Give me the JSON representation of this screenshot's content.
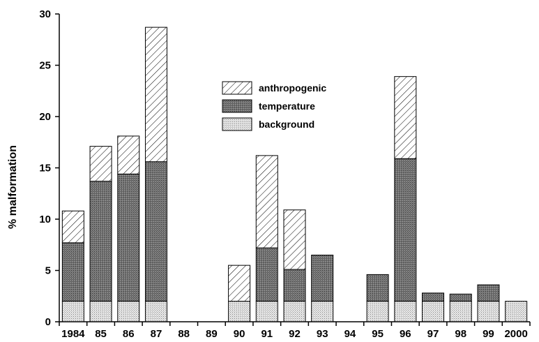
{
  "chart_data": {
    "type": "bar",
    "stacked": true,
    "ylabel": "% malformation",
    "xlabel": "",
    "ylim": [
      0,
      30
    ],
    "yticks": [
      0,
      5,
      10,
      15,
      20,
      25,
      30
    ],
    "grid": false,
    "legend_position": "top-center",
    "categories": [
      "1984",
      "85",
      "86",
      "87",
      "88",
      "89",
      "90",
      "91",
      "92",
      "93",
      "94",
      "95",
      "96",
      "97",
      "98",
      "99",
      "2000"
    ],
    "series": [
      {
        "name": "background",
        "pattern": "dotted",
        "color": "#d9d9d9",
        "values": [
          2,
          2,
          2,
          2,
          0,
          0,
          2,
          2,
          2,
          2,
          0,
          2,
          2,
          2,
          2,
          2,
          2
        ]
      },
      {
        "name": "temperature",
        "pattern": "dark-stipple",
        "color": "#6e6e6e",
        "values": [
          5.7,
          11.7,
          12.4,
          13.6,
          0,
          0,
          0,
          5.2,
          3.1,
          4.5,
          0,
          2.6,
          13.9,
          0.8,
          0.7,
          1.6,
          0
        ]
      },
      {
        "name": "anthropogenic",
        "pattern": "hatched",
        "color": "#ffffff",
        "values": [
          3.1,
          3.4,
          3.7,
          13.1,
          0,
          0,
          3.5,
          9.0,
          5.8,
          0,
          0,
          0,
          8.0,
          0,
          0,
          0,
          0
        ]
      }
    ],
    "legend_order": [
      "anthropogenic",
      "temperature",
      "background"
    ]
  }
}
